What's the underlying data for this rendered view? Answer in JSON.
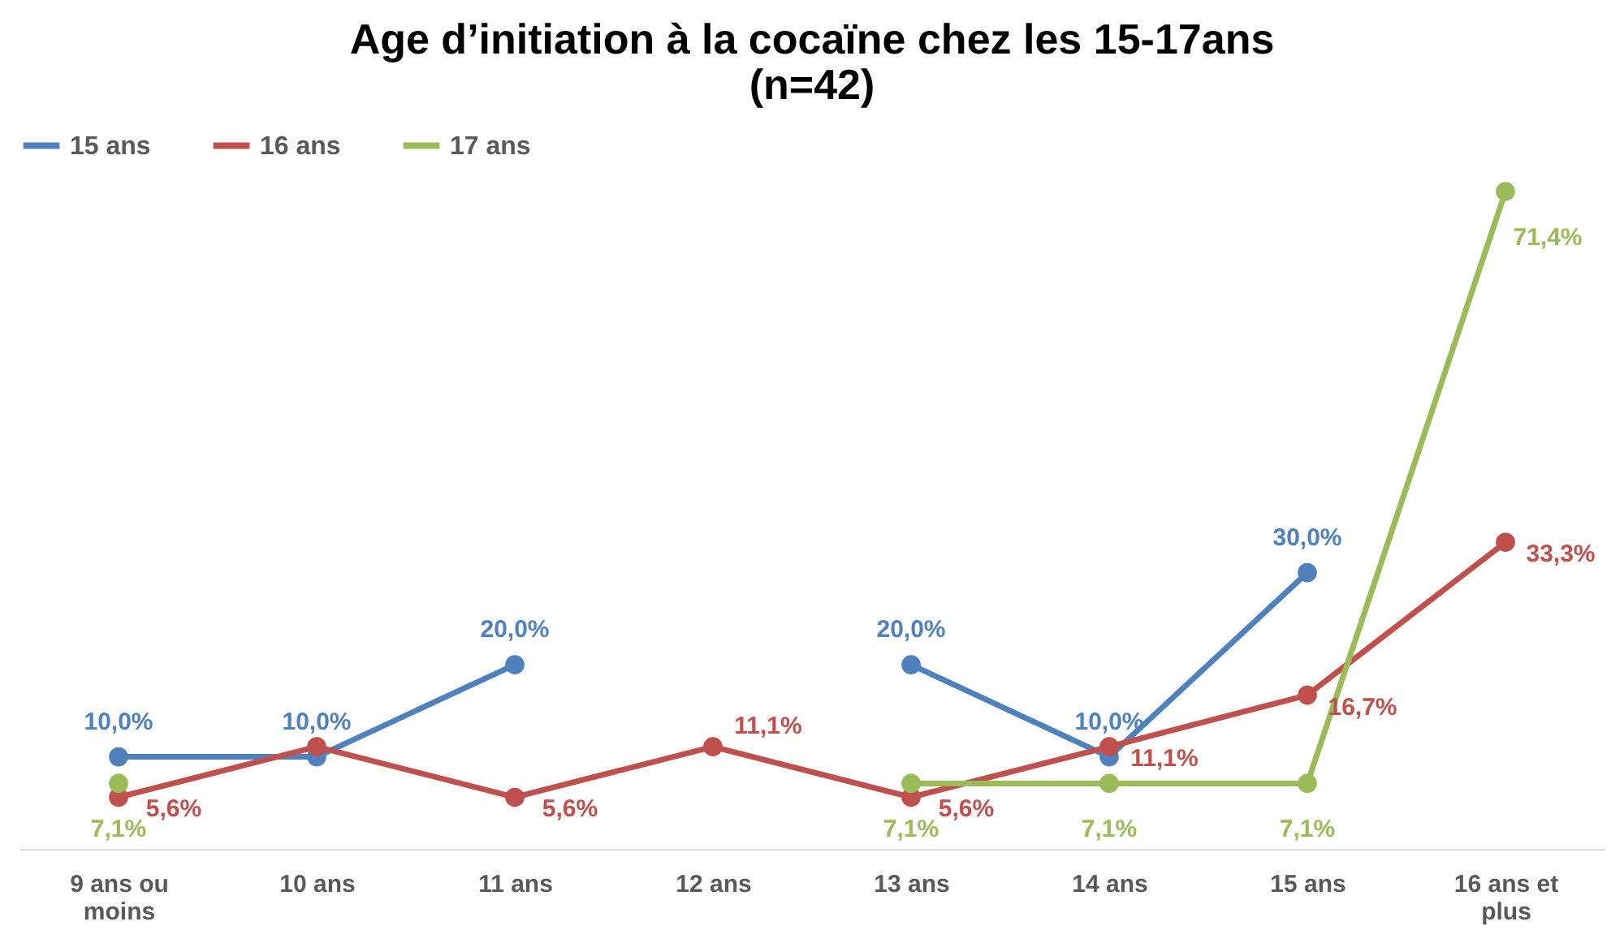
{
  "chart_data": {
    "type": "line",
    "title": "Age d’initiation à la cocaïne chez les 15-17ans (n=42)",
    "categories": [
      "9 ans ou moins",
      "10 ans",
      "11 ans",
      "12 ans",
      "13 ans",
      "14 ans",
      "15 ans",
      "16 ans et plus"
    ],
    "series": [
      {
        "name": "15 ans",
        "color": "#4f81bd",
        "values": [
          10.0,
          10.0,
          20.0,
          null,
          20.0,
          10.0,
          30.0,
          null
        ],
        "value_labels": [
          "10,0%",
          "10,0%",
          "20,0%",
          null,
          "20,0%",
          "10,0%",
          "30,0%",
          null
        ]
      },
      {
        "name": "16 ans",
        "color": "#c0504d",
        "values": [
          5.6,
          11.1,
          5.6,
          11.1,
          5.6,
          11.1,
          16.7,
          33.3
        ],
        "value_labels": [
          "5,6%",
          null,
          "5,6%",
          "11,1%",
          "5,6%",
          "11,1%",
          "16,7%",
          "33,3%"
        ]
      },
      {
        "name": "17 ans",
        "color": "#9bbb59",
        "values": [
          7.1,
          null,
          null,
          null,
          7.1,
          7.1,
          7.1,
          71.4
        ],
        "value_labels": [
          "7,1%",
          null,
          null,
          null,
          "7,1%",
          "7,1%",
          "7,1%",
          "71,4%"
        ]
      }
    ],
    "tick_labels": "x",
    "grid": false,
    "legend": "top",
    "marker": "circle",
    "line_style": "solid"
  }
}
